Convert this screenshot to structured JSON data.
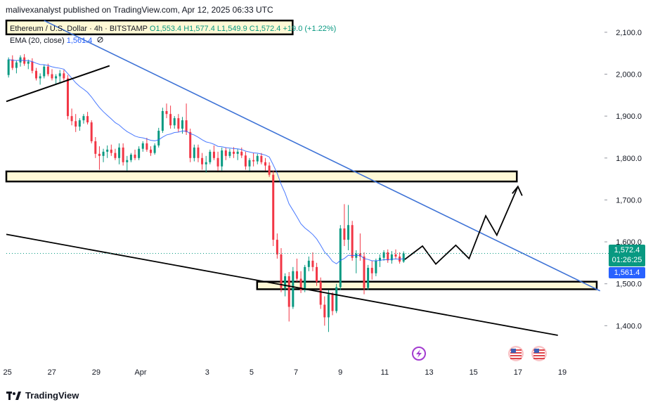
{
  "header": {
    "publisher_line": "malivexanalyst published on TradingView.com, Apr 12, 2025 06:33 UTC"
  },
  "legend": {
    "symbol": "Ethereum / U.S. Dollar · 4h · BITSTAMP",
    "ohlc": "O1,553.4 H1,577.4 L1,549.9 C1,572.4 +19.0 (+1.22%)",
    "indicator": "EMA (20, close)",
    "indicator_value": "1,561.4",
    "indicator_icon": "eye-off-icon"
  },
  "badges": {
    "price": "1,572.4",
    "countdown": "01:26:25",
    "ema": "1,561.4"
  },
  "footer": {
    "brand": "TradingView",
    "brand_icon": "tradingview-logo-icon"
  },
  "event_icons": [
    "lightning-event-icon",
    "us-flag-icon",
    "us-flag-icon"
  ],
  "colors": {
    "up": "#089981",
    "down": "#f23645",
    "ema": "#2962ff",
    "trendline": "#3d72d6",
    "zone_fill": "#fff9d6",
    "price_badge": "#089981",
    "ema_badge": "#2962ff"
  },
  "chart_data": {
    "type": "candlestick",
    "timeframe": "4h",
    "y_axis": {
      "ticks": [
        "1,400.0",
        "1,500.0",
        "1,600.0",
        "1,700.0",
        "1,800.0",
        "1,900.0",
        "2,000.0",
        "2,100.0"
      ],
      "tick_values": [
        1400,
        1500,
        1600,
        1700,
        1800,
        1900,
        2000,
        2100
      ],
      "range": [
        1310,
        2130
      ]
    },
    "x_axis": {
      "ticks": [
        "25",
        "27",
        "29",
        "Apr",
        "3",
        "5",
        "7",
        "9",
        "11",
        "13",
        "15",
        "17",
        "19"
      ],
      "tick_days": [
        -7,
        -5,
        -3,
        -1,
        2,
        4,
        6,
        8,
        10,
        12,
        14,
        16,
        18
      ],
      "range_days": [
        -7.05,
        19.9
      ],
      "first_day": "Mar 25"
    },
    "current_price": 1572.4,
    "candles": [
      [
        1998,
        2040,
        1992,
        2035
      ],
      [
        2035,
        2045,
        2010,
        2015
      ],
      [
        2015,
        2032,
        2002,
        2028
      ],
      [
        2028,
        2045,
        2018,
        2040
      ],
      [
        2040,
        2048,
        2020,
        2025
      ],
      [
        2025,
        2035,
        2012,
        2030
      ],
      [
        2030,
        2038,
        2002,
        2008
      ],
      [
        2008,
        2015,
        1985,
        1990
      ],
      [
        1990,
        2002,
        1975,
        1995
      ],
      [
        1995,
        2022,
        1990,
        2018
      ],
      [
        2018,
        2025,
        1995,
        2000
      ],
      [
        2000,
        2012,
        1985,
        1990
      ],
      [
        1990,
        2000,
        1975,
        1995
      ],
      [
        1995,
        2010,
        1980,
        2002
      ],
      [
        2002,
        2010,
        1985,
        1990
      ],
      [
        1990,
        1998,
        1892,
        1900
      ],
      [
        1900,
        1918,
        1878,
        1888
      ],
      [
        1888,
        1905,
        1862,
        1875
      ],
      [
        1875,
        1895,
        1865,
        1890
      ],
      [
        1890,
        1905,
        1882,
        1900
      ],
      [
        1900,
        1910,
        1880,
        1885
      ],
      [
        1885,
        1890,
        1835,
        1840
      ],
      [
        1840,
        1850,
        1800,
        1810
      ],
      [
        1810,
        1828,
        1772,
        1805
      ],
      [
        1805,
        1822,
        1790,
        1815
      ],
      [
        1815,
        1830,
        1800,
        1820
      ],
      [
        1820,
        1832,
        1805,
        1812
      ],
      [
        1812,
        1822,
        1795,
        1800
      ],
      [
        1800,
        1835,
        1785,
        1825
      ],
      [
        1825,
        1835,
        1782,
        1790
      ],
      [
        1790,
        1805,
        1770,
        1795
      ],
      [
        1795,
        1812,
        1790,
        1808
      ],
      [
        1808,
        1820,
        1795,
        1800
      ],
      [
        1800,
        1828,
        1795,
        1822
      ],
      [
        1822,
        1840,
        1815,
        1835
      ],
      [
        1835,
        1848,
        1815,
        1820
      ],
      [
        1820,
        1828,
        1805,
        1812
      ],
      [
        1812,
        1835,
        1808,
        1830
      ],
      [
        1830,
        1872,
        1825,
        1865
      ],
      [
        1865,
        1920,
        1860,
        1912
      ],
      [
        1912,
        1930,
        1895,
        1905
      ],
      [
        1905,
        1925,
        1870,
        1878
      ],
      [
        1878,
        1900,
        1870,
        1895
      ],
      [
        1895,
        1905,
        1862,
        1870
      ],
      [
        1870,
        1898,
        1858,
        1890
      ],
      [
        1890,
        1930,
        1855,
        1862
      ],
      [
        1862,
        1870,
        1790,
        1800
      ],
      [
        1800,
        1832,
        1792,
        1825
      ],
      [
        1825,
        1832,
        1790,
        1800
      ],
      [
        1800,
        1812,
        1772,
        1785
      ],
      [
        1785,
        1805,
        1765,
        1790
      ],
      [
        1790,
        1820,
        1785,
        1815
      ],
      [
        1815,
        1830,
        1795,
        1800
      ],
      [
        1800,
        1815,
        1770,
        1780
      ],
      [
        1780,
        1825,
        1770,
        1818
      ],
      [
        1818,
        1825,
        1795,
        1805
      ],
      [
        1805,
        1822,
        1800,
        1815
      ],
      [
        1815,
        1826,
        1800,
        1810
      ],
      [
        1810,
        1822,
        1795,
        1815
      ],
      [
        1815,
        1825,
        1800,
        1806
      ],
      [
        1806,
        1815,
        1772,
        1780
      ],
      [
        1780,
        1800,
        1770,
        1795
      ],
      [
        1795,
        1812,
        1780,
        1792
      ],
      [
        1792,
        1810,
        1785,
        1805
      ],
      [
        1805,
        1812,
        1785,
        1790
      ],
      [
        1790,
        1800,
        1770,
        1782
      ],
      [
        1782,
        1790,
        1755,
        1760
      ],
      [
        1760,
        1770,
        1590,
        1605
      ],
      [
        1605,
        1620,
        1560,
        1570
      ],
      [
        1570,
        1585,
        1480,
        1490
      ],
      [
        1490,
        1525,
        1470,
        1518
      ],
      [
        1518,
        1528,
        1410,
        1445
      ],
      [
        1445,
        1540,
        1440,
        1530
      ],
      [
        1530,
        1560,
        1505,
        1512
      ],
      [
        1512,
        1530,
        1478,
        1485
      ],
      [
        1485,
        1545,
        1480,
        1540
      ],
      [
        1540,
        1565,
        1530,
        1555
      ],
      [
        1555,
        1575,
        1530,
        1540
      ],
      [
        1540,
        1550,
        1495,
        1505
      ],
      [
        1505,
        1515,
        1440,
        1450
      ],
      [
        1450,
        1470,
        1400,
        1420
      ],
      [
        1420,
        1485,
        1385,
        1475
      ],
      [
        1475,
        1480,
        1425,
        1435
      ],
      [
        1435,
        1500,
        1430,
        1492
      ],
      [
        1492,
        1640,
        1485,
        1632
      ],
      [
        1632,
        1690,
        1590,
        1605
      ],
      [
        1605,
        1688,
        1580,
        1640
      ],
      [
        1640,
        1650,
        1555,
        1562
      ],
      [
        1562,
        1580,
        1525,
        1572
      ],
      [
        1572,
        1620,
        1555,
        1565
      ],
      [
        1565,
        1575,
        1475,
        1490
      ],
      [
        1490,
        1545,
        1485,
        1538
      ],
      [
        1538,
        1555,
        1510,
        1525
      ],
      [
        1525,
        1560,
        1518,
        1555
      ],
      [
        1555,
        1570,
        1540,
        1562
      ],
      [
        1562,
        1580,
        1555,
        1575
      ],
      [
        1575,
        1582,
        1550,
        1556
      ],
      [
        1556,
        1578,
        1548,
        1570
      ],
      [
        1570,
        1582,
        1560,
        1565
      ],
      [
        1565,
        1575,
        1548,
        1553
      ],
      [
        1553,
        1577.4,
        1549.9,
        1572.4
      ]
    ],
    "ema_20_last": 1561.4,
    "annotations": {
      "resistance_zone": {
        "price_range": [
          1744,
          1768
        ],
        "day_range": [
          -7.05,
          15.95
        ]
      },
      "support_zone": {
        "price_range": [
          1487,
          1505
        ],
        "day_range": [
          4.25,
          19.55
        ]
      },
      "top_zone": {
        "price_range": [
          2095,
          2128
        ],
        "day_range": [
          -7.05,
          5.85
        ]
      },
      "descending_trendline": [
        [
          -5.35,
          2128
        ],
        [
          19.7,
          1483
        ]
      ],
      "lower_trendline": [
        [
          -7.05,
          1618
        ],
        [
          17.8,
          1377
        ]
      ],
      "upper_left_line": [
        [
          -7.05,
          1935
        ],
        [
          -2.4,
          2020
        ]
      ],
      "projected_path": [
        [
          10.9,
          1558
        ],
        [
          11.7,
          1590
        ],
        [
          12.3,
          1547
        ],
        [
          13.2,
          1592
        ],
        [
          13.8,
          1560
        ],
        [
          14.55,
          1662
        ],
        [
          15.05,
          1616
        ],
        [
          16.0,
          1732
        ]
      ]
    }
  }
}
